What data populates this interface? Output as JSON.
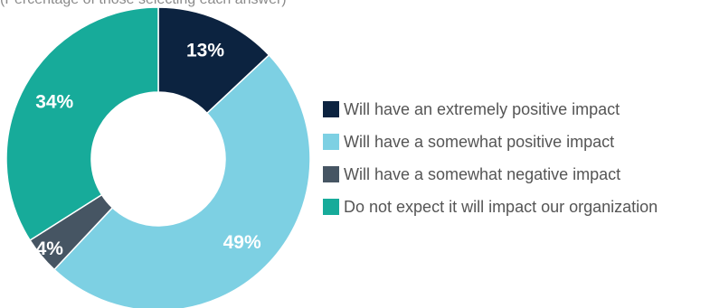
{
  "caption": "(Percentage of those selecting each answer)",
  "chart_data": {
    "type": "pie",
    "donut": true,
    "categories": [
      "Will have an extremely positive impact",
      "Will have a somewhat positive impact",
      "Will have a somewhat negative impact",
      "Do not expect it will impact our organization"
    ],
    "values": [
      13,
      49,
      4,
      34
    ],
    "data_labels": [
      "13%",
      "49%",
      "4%",
      "34%"
    ],
    "colors": [
      "#0c2340",
      "#7dd0e3",
      "#465563",
      "#17ab9a"
    ],
    "label_colors": [
      "#ffffff",
      "#ffffff",
      "#ffffff",
      "#ffffff"
    ],
    "legend_position": "right"
  }
}
